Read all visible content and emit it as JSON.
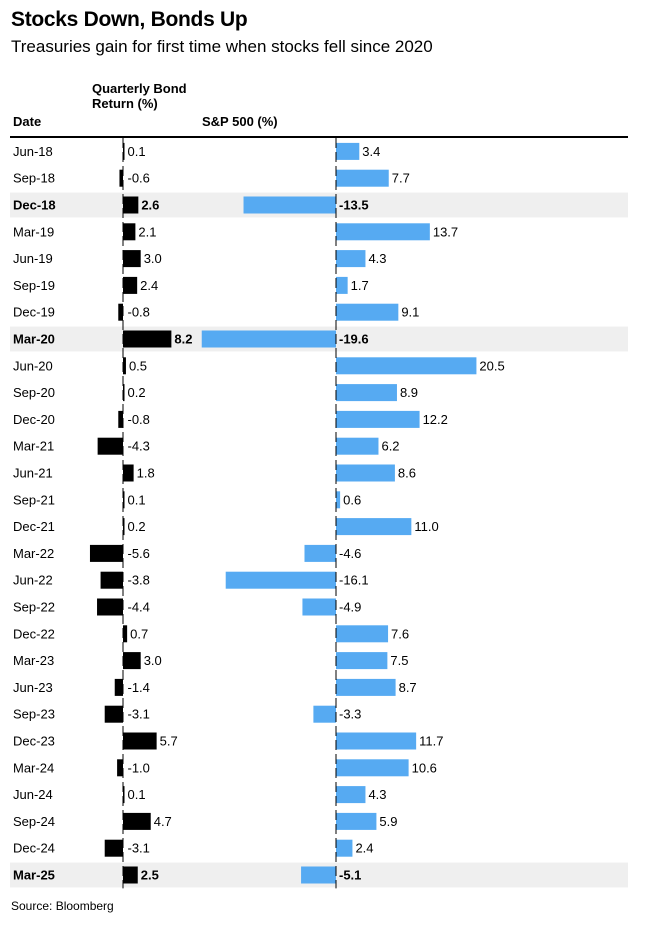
{
  "title": "Stocks Down, Bonds Up",
  "subtitle": "Treasuries gain for first time when stocks fell since 2020",
  "source": "Source: Bloomberg",
  "chart_data": {
    "type": "table",
    "columns": {
      "date": "Date",
      "bond": "Quarterly Bond Return (%)",
      "sp": "S&P 500 (%)"
    },
    "colors": {
      "bond": "#000000",
      "sp": "#56aaf2",
      "highlight": "#efefef"
    },
    "rows": [
      {
        "date": "Jun-18",
        "bond": 0.1,
        "bond_label": "0.1",
        "sp": 3.4,
        "sp_label": "3.4",
        "highlight": false
      },
      {
        "date": "Sep-18",
        "bond": -0.6,
        "bond_label": "-0.6",
        "sp": 7.7,
        "sp_label": "7.7",
        "highlight": false
      },
      {
        "date": "Dec-18",
        "bond": 2.6,
        "bond_label": "2.6",
        "sp": -13.5,
        "sp_label": "-13.5",
        "highlight": true
      },
      {
        "date": "Mar-19",
        "bond": 2.1,
        "bond_label": "2.1",
        "sp": 13.7,
        "sp_label": "13.7",
        "highlight": false
      },
      {
        "date": "Jun-19",
        "bond": 3.0,
        "bond_label": "3.0",
        "sp": 4.3,
        "sp_label": "4.3",
        "highlight": false
      },
      {
        "date": "Sep-19",
        "bond": 2.4,
        "bond_label": "2.4",
        "sp": 1.7,
        "sp_label": "1.7",
        "highlight": false
      },
      {
        "date": "Dec-19",
        "bond": -0.8,
        "bond_label": "-0.8",
        "sp": 9.1,
        "sp_label": "9.1",
        "highlight": false
      },
      {
        "date": "Mar-20",
        "bond": 8.2,
        "bond_label": "8.2",
        "sp": -19.6,
        "sp_label": "-19.6",
        "highlight": true
      },
      {
        "date": "Jun-20",
        "bond": 0.5,
        "bond_label": "0.5",
        "sp": 20.5,
        "sp_label": "20.5",
        "highlight": false
      },
      {
        "date": "Sep-20",
        "bond": 0.2,
        "bond_label": "0.2",
        "sp": 8.9,
        "sp_label": "8.9",
        "highlight": false
      },
      {
        "date": "Dec-20",
        "bond": -0.8,
        "bond_label": "-0.8",
        "sp": 12.2,
        "sp_label": "12.2",
        "highlight": false
      },
      {
        "date": "Mar-21",
        "bond": -4.3,
        "bond_label": "-4.3",
        "sp": 6.2,
        "sp_label": "6.2",
        "highlight": false
      },
      {
        "date": "Jun-21",
        "bond": 1.8,
        "bond_label": "1.8",
        "sp": 8.6,
        "sp_label": "8.6",
        "highlight": false
      },
      {
        "date": "Sep-21",
        "bond": 0.1,
        "bond_label": "0.1",
        "sp": 0.6,
        "sp_label": "0.6",
        "highlight": false
      },
      {
        "date": "Dec-21",
        "bond": 0.2,
        "bond_label": "0.2",
        "sp": 11.0,
        "sp_label": "11.0",
        "highlight": false
      },
      {
        "date": "Mar-22",
        "bond": -5.6,
        "bond_label": "-5.6",
        "sp": -4.6,
        "sp_label": "-4.6",
        "highlight": false
      },
      {
        "date": "Jun-22",
        "bond": -3.8,
        "bond_label": "-3.8",
        "sp": -16.1,
        "sp_label": "-16.1",
        "highlight": false
      },
      {
        "date": "Sep-22",
        "bond": -4.4,
        "bond_label": "-4.4",
        "sp": -4.9,
        "sp_label": "-4.9",
        "highlight": false
      },
      {
        "date": "Dec-22",
        "bond": 0.7,
        "bond_label": "0.7",
        "sp": 7.6,
        "sp_label": "7.6",
        "highlight": false
      },
      {
        "date": "Mar-23",
        "bond": 3.0,
        "bond_label": "3.0",
        "sp": 7.5,
        "sp_label": "7.5",
        "highlight": false
      },
      {
        "date": "Jun-23",
        "bond": -1.4,
        "bond_label": "-1.4",
        "sp": 8.7,
        "sp_label": "8.7",
        "highlight": false
      },
      {
        "date": "Sep-23",
        "bond": -3.1,
        "bond_label": "-3.1",
        "sp": -3.3,
        "sp_label": "-3.3",
        "highlight": false
      },
      {
        "date": "Dec-23",
        "bond": 5.7,
        "bond_label": "5.7",
        "sp": 11.7,
        "sp_label": "11.7",
        "highlight": false
      },
      {
        "date": "Mar-24",
        "bond": -1.0,
        "bond_label": "-1.0",
        "sp": 10.6,
        "sp_label": "10.6",
        "highlight": false
      },
      {
        "date": "Jun-24",
        "bond": 0.1,
        "bond_label": "0.1",
        "sp": 4.3,
        "sp_label": "4.3",
        "highlight": false
      },
      {
        "date": "Sep-24",
        "bond": 4.7,
        "bond_label": "4.7",
        "sp": 5.9,
        "sp_label": "5.9",
        "highlight": false
      },
      {
        "date": "Dec-24",
        "bond": -3.1,
        "bond_label": "-3.1",
        "sp": 2.4,
        "sp_label": "2.4",
        "highlight": false
      },
      {
        "date": "Mar-25",
        "bond": 2.5,
        "bond_label": "2.5",
        "sp": -5.1,
        "sp_label": "-5.1",
        "highlight": true
      }
    ]
  }
}
